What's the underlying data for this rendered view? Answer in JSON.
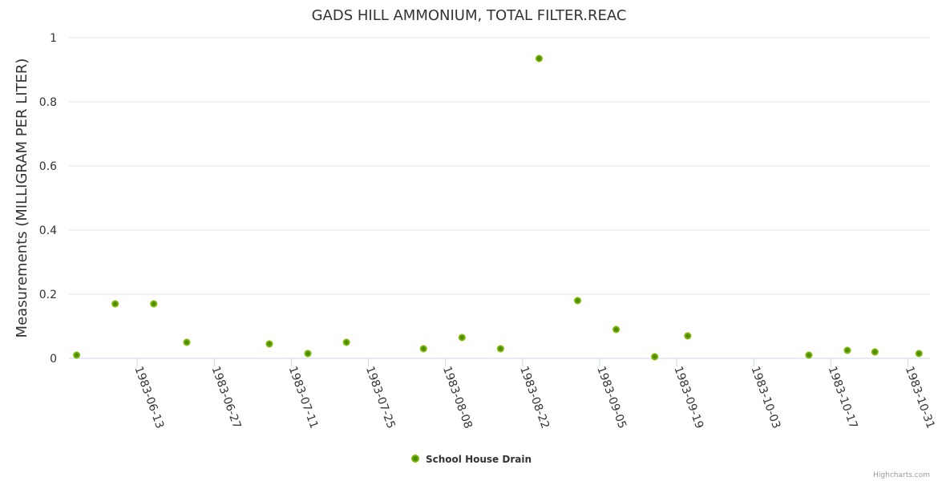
{
  "chart_data": {
    "type": "scatter",
    "title": "GADS HILL AMMONIUM, TOTAL FILTER.REAC",
    "xlabel": "",
    "ylabel": "Measurements (MILLIGRAM PER LITER)",
    "ylim": [
      0,
      1
    ],
    "yticks": [
      0,
      0.2,
      0.4,
      0.6,
      0.8,
      1
    ],
    "ytick_labels": [
      "0",
      "0.2",
      "0.4",
      "0.6",
      "0.8",
      "1"
    ],
    "xlim": [
      "1983-05-31",
      "1983-11-04"
    ],
    "xticks": [
      "1983-06-13",
      "1983-06-27",
      "1983-07-11",
      "1983-07-25",
      "1983-08-08",
      "1983-08-22",
      "1983-09-05",
      "1983-09-19",
      "1983-10-03",
      "1983-10-17",
      "1983-10-31"
    ],
    "grid": true,
    "legend_position": "bottom-center",
    "series": [
      {
        "name": "School House Drain",
        "color": "#7cb500",
        "x": [
          "1983-06-02",
          "1983-06-09",
          "1983-06-16",
          "1983-06-22",
          "1983-07-07",
          "1983-07-14",
          "1983-07-21",
          "1983-08-04",
          "1983-08-11",
          "1983-08-18",
          "1983-08-25",
          "1983-09-01",
          "1983-09-08",
          "1983-09-15",
          "1983-09-21",
          "1983-10-13",
          "1983-10-20",
          "1983-10-25",
          "1983-11-02"
        ],
        "y": [
          0.01,
          0.17,
          0.17,
          0.05,
          0.045,
          0.015,
          0.05,
          0.03,
          0.065,
          0.03,
          0.935,
          0.18,
          0.09,
          0.005,
          0.07,
          0.01,
          0.025,
          0.02,
          0.015
        ]
      }
    ],
    "credits": "Highcharts.com"
  }
}
